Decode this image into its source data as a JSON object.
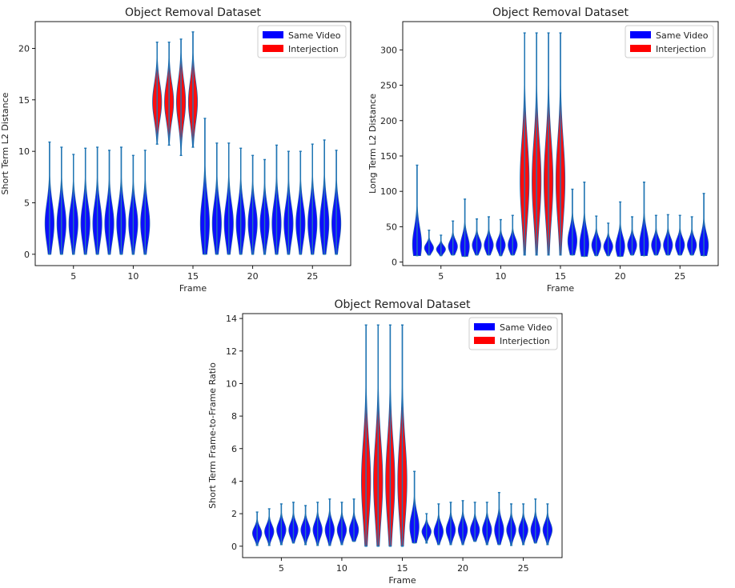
{
  "colors": {
    "same_video": "#0000ff",
    "interjection": "#ff0000",
    "edge": "#1f5fa8",
    "stem": "#1f77b4"
  },
  "chart_data": [
    {
      "type": "violin",
      "title": "Object Removal Dataset",
      "xlabel": "Frame",
      "ylabel": "Short Term L2 Distance",
      "xlim": [
        1.8,
        28.2
      ],
      "ylim": [
        -1.1,
        22.6
      ],
      "xticks": [
        5,
        10,
        15,
        20,
        25
      ],
      "yticks": [
        0,
        5,
        10,
        15,
        20
      ],
      "legend": [
        {
          "label": "Same Video",
          "series": "same"
        },
        {
          "label": "Interjection",
          "series": "interjection"
        }
      ],
      "violins": [
        {
          "frame": 3,
          "min": 0,
          "max": 10.9,
          "center": 3.0,
          "series": "same"
        },
        {
          "frame": 4,
          "min": 0,
          "max": 10.4,
          "center": 3.0,
          "series": "same"
        },
        {
          "frame": 5,
          "min": 0,
          "max": 9.7,
          "center": 3.0,
          "series": "same"
        },
        {
          "frame": 6,
          "min": 0,
          "max": 10.3,
          "center": 3.0,
          "series": "same"
        },
        {
          "frame": 7,
          "min": 0,
          "max": 10.4,
          "center": 3.0,
          "series": "same"
        },
        {
          "frame": 8,
          "min": 0,
          "max": 10.1,
          "center": 3.0,
          "series": "same"
        },
        {
          "frame": 9,
          "min": 0,
          "max": 10.4,
          "center": 3.0,
          "series": "same"
        },
        {
          "frame": 10,
          "min": 0,
          "max": 9.6,
          "center": 3.0,
          "series": "same"
        },
        {
          "frame": 11,
          "min": 0,
          "max": 10.1,
          "center": 3.0,
          "series": "same"
        },
        {
          "frame": 12,
          "min": 10.7,
          "max": 20.6,
          "center": 14.8,
          "series": "interjection"
        },
        {
          "frame": 13,
          "min": 10.6,
          "max": 20.6,
          "center": 14.8,
          "series": "interjection"
        },
        {
          "frame": 14,
          "min": 9.6,
          "max": 20.9,
          "center": 14.8,
          "series": "interjection"
        },
        {
          "frame": 15,
          "min": 10.4,
          "max": 21.6,
          "center": 14.8,
          "series": "interjection"
        },
        {
          "frame": 16,
          "min": 0,
          "max": 13.2,
          "center": 3.0,
          "series": "same"
        },
        {
          "frame": 17,
          "min": 0,
          "max": 10.8,
          "center": 3.0,
          "series": "same"
        },
        {
          "frame": 18,
          "min": 0,
          "max": 10.8,
          "center": 3.0,
          "series": "same"
        },
        {
          "frame": 19,
          "min": 0,
          "max": 10.3,
          "center": 3.0,
          "series": "same"
        },
        {
          "frame": 20,
          "min": 0,
          "max": 9.6,
          "center": 3.0,
          "series": "same"
        },
        {
          "frame": 21,
          "min": 0,
          "max": 9.2,
          "center": 3.0,
          "series": "same"
        },
        {
          "frame": 22,
          "min": 0,
          "max": 10.6,
          "center": 3.0,
          "series": "same"
        },
        {
          "frame": 23,
          "min": 0,
          "max": 10.0,
          "center": 3.0,
          "series": "same"
        },
        {
          "frame": 24,
          "min": 0,
          "max": 10.0,
          "center": 3.0,
          "series": "same"
        },
        {
          "frame": 25,
          "min": 0,
          "max": 10.7,
          "center": 3.0,
          "series": "same"
        },
        {
          "frame": 26,
          "min": 0,
          "max": 11.1,
          "center": 3.0,
          "series": "same"
        },
        {
          "frame": 27,
          "min": 0,
          "max": 10.1,
          "center": 3.0,
          "series": "same"
        }
      ]
    },
    {
      "type": "violin",
      "title": "Object Removal Dataset",
      "xlabel": "Frame",
      "ylabel": "Long Term L2 Distance",
      "xlim": [
        1.8,
        28.2
      ],
      "ylim": [
        -5,
        340
      ],
      "xticks": [
        5,
        10,
        15,
        20,
        25
      ],
      "yticks": [
        0,
        50,
        100,
        150,
        200,
        250,
        300
      ],
      "legend": [
        {
          "label": "Same Video",
          "series": "same"
        },
        {
          "label": "Interjection",
          "series": "interjection"
        }
      ],
      "violins": [
        {
          "frame": 3,
          "min": 9,
          "max": 137,
          "center": 25,
          "series": "same"
        },
        {
          "frame": 4,
          "min": 10,
          "max": 45,
          "center": 20,
          "series": "same"
        },
        {
          "frame": 5,
          "min": 9,
          "max": 38,
          "center": 18,
          "series": "same"
        },
        {
          "frame": 6,
          "min": 10,
          "max": 58,
          "center": 22,
          "series": "same"
        },
        {
          "frame": 7,
          "min": 8,
          "max": 89,
          "center": 22,
          "series": "same"
        },
        {
          "frame": 8,
          "min": 10,
          "max": 61,
          "center": 24,
          "series": "same"
        },
        {
          "frame": 9,
          "min": 10,
          "max": 64,
          "center": 24,
          "series": "same"
        },
        {
          "frame": 10,
          "min": 9,
          "max": 60,
          "center": 24,
          "series": "same"
        },
        {
          "frame": 11,
          "min": 10,
          "max": 66,
          "center": 24,
          "series": "same"
        },
        {
          "frame": 12,
          "min": 10,
          "max": 324,
          "center": 115,
          "series": "interjection"
        },
        {
          "frame": 13,
          "min": 10,
          "max": 324,
          "center": 115,
          "series": "interjection"
        },
        {
          "frame": 14,
          "min": 10,
          "max": 324,
          "center": 115,
          "series": "interjection"
        },
        {
          "frame": 15,
          "min": 10,
          "max": 324,
          "center": 115,
          "series": "interjection"
        },
        {
          "frame": 16,
          "min": 10,
          "max": 103,
          "center": 30,
          "series": "same"
        },
        {
          "frame": 17,
          "min": 8,
          "max": 113,
          "center": 25,
          "series": "same"
        },
        {
          "frame": 18,
          "min": 9,
          "max": 65,
          "center": 24,
          "series": "same"
        },
        {
          "frame": 19,
          "min": 9,
          "max": 55,
          "center": 22,
          "series": "same"
        },
        {
          "frame": 20,
          "min": 8,
          "max": 85,
          "center": 22,
          "series": "same"
        },
        {
          "frame": 21,
          "min": 10,
          "max": 64,
          "center": 24,
          "series": "same"
        },
        {
          "frame": 22,
          "min": 9,
          "max": 113,
          "center": 25,
          "series": "same"
        },
        {
          "frame": 23,
          "min": 10,
          "max": 66,
          "center": 24,
          "series": "same"
        },
        {
          "frame": 24,
          "min": 10,
          "max": 67,
          "center": 24,
          "series": "same"
        },
        {
          "frame": 25,
          "min": 10,
          "max": 66,
          "center": 24,
          "series": "same"
        },
        {
          "frame": 26,
          "min": 10,
          "max": 64,
          "center": 24,
          "series": "same"
        },
        {
          "frame": 27,
          "min": 9,
          "max": 97,
          "center": 24,
          "series": "same"
        }
      ]
    },
    {
      "type": "violin",
      "title": "Object Removal Dataset",
      "xlabel": "Frame",
      "ylabel": "Short Term Frame-to-Frame Ratio",
      "xlim": [
        1.8,
        28.2
      ],
      "ylim": [
        -0.7,
        14.3
      ],
      "xticks": [
        5,
        10,
        15,
        20,
        25
      ],
      "yticks": [
        0,
        2,
        4,
        6,
        8,
        10,
        12,
        14
      ],
      "legend": [
        {
          "label": "Same Video",
          "series": "same"
        },
        {
          "label": "Interjection",
          "series": "interjection"
        }
      ],
      "violins": [
        {
          "frame": 3,
          "min": 0.05,
          "max": 2.1,
          "center": 0.8,
          "series": "same"
        },
        {
          "frame": 4,
          "min": 0.05,
          "max": 2.3,
          "center": 0.9,
          "series": "same"
        },
        {
          "frame": 5,
          "min": 0.1,
          "max": 2.6,
          "center": 1.0,
          "series": "same"
        },
        {
          "frame": 6,
          "min": 0.2,
          "max": 2.7,
          "center": 1.0,
          "series": "same"
        },
        {
          "frame": 7,
          "min": 0.1,
          "max": 2.5,
          "center": 1.0,
          "series": "same"
        },
        {
          "frame": 8,
          "min": 0.05,
          "max": 2.7,
          "center": 1.0,
          "series": "same"
        },
        {
          "frame": 9,
          "min": 0.05,
          "max": 2.9,
          "center": 1.0,
          "series": "same"
        },
        {
          "frame": 10,
          "min": 0.1,
          "max": 2.7,
          "center": 1.0,
          "series": "same"
        },
        {
          "frame": 11,
          "min": 0.3,
          "max": 2.9,
          "center": 1.0,
          "series": "same"
        },
        {
          "frame": 12,
          "min": 0,
          "max": 13.6,
          "center": 4.0,
          "series": "interjection"
        },
        {
          "frame": 13,
          "min": 0,
          "max": 13.6,
          "center": 4.0,
          "series": "interjection"
        },
        {
          "frame": 14,
          "min": 0,
          "max": 13.6,
          "center": 4.0,
          "series": "interjection"
        },
        {
          "frame": 15,
          "min": 0,
          "max": 13.6,
          "center": 4.0,
          "series": "interjection"
        },
        {
          "frame": 16,
          "min": 0.2,
          "max": 4.6,
          "center": 1.2,
          "series": "same"
        },
        {
          "frame": 17,
          "min": 0.2,
          "max": 2.0,
          "center": 0.9,
          "series": "same"
        },
        {
          "frame": 18,
          "min": 0.1,
          "max": 2.6,
          "center": 0.9,
          "series": "same"
        },
        {
          "frame": 19,
          "min": 0.1,
          "max": 2.7,
          "center": 1.0,
          "series": "same"
        },
        {
          "frame": 20,
          "min": 0.1,
          "max": 2.8,
          "center": 1.0,
          "series": "same"
        },
        {
          "frame": 21,
          "min": 0.3,
          "max": 2.7,
          "center": 1.0,
          "series": "same"
        },
        {
          "frame": 22,
          "min": 0.1,
          "max": 2.7,
          "center": 1.0,
          "series": "same"
        },
        {
          "frame": 23,
          "min": 0.1,
          "max": 3.3,
          "center": 1.0,
          "series": "same"
        },
        {
          "frame": 24,
          "min": 0.05,
          "max": 2.6,
          "center": 1.0,
          "series": "same"
        },
        {
          "frame": 25,
          "min": 0.1,
          "max": 2.6,
          "center": 1.0,
          "series": "same"
        },
        {
          "frame": 26,
          "min": 0.2,
          "max": 2.9,
          "center": 1.0,
          "series": "same"
        },
        {
          "frame": 27,
          "min": 0.1,
          "max": 2.6,
          "center": 1.0,
          "series": "same"
        }
      ]
    }
  ]
}
